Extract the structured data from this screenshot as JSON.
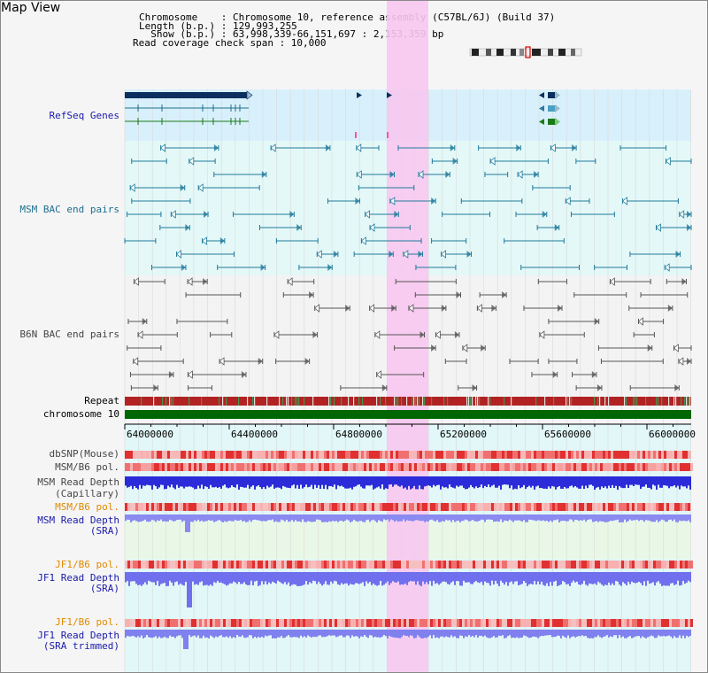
{
  "title": "Map View",
  "info": {
    "chromosome": "Chromosome    : Chromosome 10, reference assembly (C57BL/6J) (Build 37)",
    "length": "Length (b.p.) : 129,993,255",
    "show": "  Show (b.p.) : 63,998,339-66,151,697 : 2,153,359 bp",
    "coverage": "Read coverage check span : 10,000"
  },
  "tracks": {
    "refseq": "RefSeq Genes",
    "msm_bac": "MSM BAC end pairs",
    "b6n_bac": "B6N BAC end pairs",
    "repeat": "Repeat",
    "chromosome": "chromosome 10",
    "dbsnp": "dbSNP(Mouse)",
    "msm_pol1": "MSM/B6 pol.",
    "msm_depth_cap_1": "MSM Read Depth",
    "msm_depth_cap_2": "(Capillary)",
    "msm_pol2": "MSM/B6 pol.",
    "msm_depth_sra_1": "MSM Read Depth",
    "msm_depth_sra_2": "(SRA)",
    "jf1_pol1": "JF1/B6 pol.",
    "jf1_depth_sra_1": "JF1 Read Depth",
    "jf1_depth_sra_2": "(SRA)",
    "jf1_pol2": "JF1/B6 pol.",
    "jf1_depth_trim_1": "JF1 Read Depth",
    "jf1_depth_trim_2": "(SRA trimmed)"
  },
  "axis_ticks": [
    "64000000",
    "64400000",
    "64800000",
    "65200000",
    "65600000",
    "66000000"
  ],
  "colors": {
    "highlight": "#f8c8f0",
    "refseq_dark": "#0b2f5e",
    "refseq_teal": "#1f6f8f",
    "msm_bac": "#1f7a9a",
    "b6n_bac": "#555555",
    "chromosome_bar": "#006600",
    "depth_blue": "#2b2bd9",
    "depth_light": "#7777ee",
    "pol_red": "#e02020"
  }
}
